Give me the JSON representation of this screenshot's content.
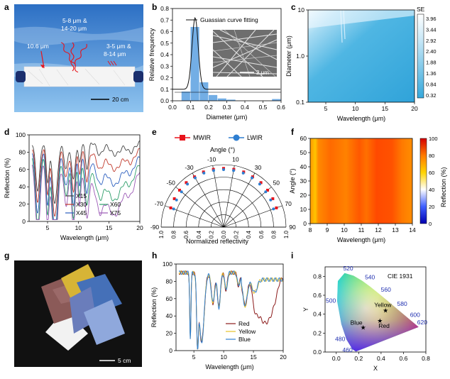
{
  "panels": {
    "a": "a",
    "b": "b",
    "c": "c",
    "d": "d",
    "e": "e",
    "f": "f",
    "g": "g",
    "h": "h",
    "i": "i"
  },
  "photo_a": {
    "lbl1": "10.6 μm",
    "lbl2a": "5-8 μm &",
    "lbl2b": "14-20 μm",
    "lbl3a": "3-5 μm &",
    "lbl3b": "8-14 μm",
    "scale": "20 cm"
  },
  "photo_g": {
    "scale": "5 cm"
  },
  "colors": {
    "red": "#e8141c",
    "blue": "#2f7fd1",
    "bar": "#5aa0e0",
    "panel_bg": "#ffffff"
  },
  "chart_data": [
    {
      "id": "b",
      "type": "bar",
      "xlabel": "Diameter (μm)",
      "ylabel": "Relative frequency",
      "xlim": [
        0.0,
        0.6
      ],
      "ylim": [
        0.0,
        0.8
      ],
      "xticks": [
        "0.0",
        "0.1",
        "0.2",
        "0.3",
        "0.4",
        "0.5",
        "0.6"
      ],
      "yticks": [
        "0.0",
        "0.1",
        "0.2",
        "0.3",
        "0.4",
        "0.5",
        "0.6",
        "0.7",
        "0.8"
      ],
      "bins": [
        0.075,
        0.125,
        0.175,
        0.225,
        0.275,
        0.325,
        0.575
      ],
      "values": [
        0.08,
        0.64,
        0.16,
        0.05,
        0.02,
        0.01,
        0.015
      ],
      "legend": "Guassian curve fitting",
      "inset_scale": "2 μm",
      "inset_label": "SEM"
    },
    {
      "id": "c",
      "type": "heatmap",
      "xlabel": "Wavelength (μm)",
      "ylabel": "Diameter (μm)",
      "xlim": [
        2,
        20
      ],
      "ylim": [
        0.1,
        10
      ],
      "xticks": [
        "5",
        "10",
        "15",
        "20"
      ],
      "yticks": [
        "10",
        "1.0",
        "0.1"
      ],
      "colorbar_title": "SE",
      "colorbar_ticks": [
        "3.96",
        "3.44",
        "2.92",
        "2.40",
        "1.88",
        "1.36",
        "0.84",
        "0.32"
      ]
    },
    {
      "id": "d",
      "type": "line",
      "xlabel": "Wavelength (μm)",
      "ylabel": "Reflection (%)",
      "xlim": [
        2,
        20
      ],
      "ylim": [
        0,
        100
      ],
      "xticks": [
        "5",
        "10",
        "15",
        "20"
      ],
      "yticks": [
        "0",
        "20",
        "40",
        "60",
        "80",
        "100"
      ],
      "series": [
        {
          "name": "X15",
          "color": "#444444",
          "base": 92
        },
        {
          "name": "X30",
          "color": "#c0392b",
          "base": 86
        },
        {
          "name": "X45",
          "color": "#2c5fbf",
          "base": 80
        },
        {
          "name": "X60",
          "color": "#2e9e6a",
          "base": 74
        },
        {
          "name": "X75",
          "color": "#9b59b6",
          "base": 68
        }
      ]
    },
    {
      "id": "e",
      "type": "polar",
      "title": "Angle (°)",
      "xlabel": "Normalized reflectivity",
      "angle_ticks": [
        "-10",
        "10",
        "-30",
        "30",
        "-50",
        "50",
        "-70",
        "70",
        "-90",
        "90"
      ],
      "r_ticks": [
        "1.0",
        "0.8",
        "0.6",
        "0.4",
        "0.2",
        "0.0",
        "0.2",
        "0.4",
        "0.6",
        "0.8",
        "1.0"
      ],
      "legend": [
        {
          "name": "MWIR",
          "color": "#e8141c"
        },
        {
          "name": "LWIR",
          "color": "#2f7fd1"
        }
      ],
      "angles": [
        -70,
        -60,
        -50,
        -40,
        -30,
        -20,
        -10,
        0,
        10,
        20,
        30,
        40,
        50,
        60,
        70
      ],
      "mwir": [
        0.9,
        0.91,
        0.92,
        0.93,
        0.93,
        0.94,
        0.94,
        0.94,
        0.94,
        0.94,
        0.93,
        0.93,
        0.92,
        0.91,
        0.9
      ],
      "lwir": [
        0.85,
        0.87,
        0.88,
        0.9,
        0.91,
        0.92,
        0.92,
        0.92,
        0.92,
        0.92,
        0.91,
        0.9,
        0.88,
        0.87,
        0.85
      ]
    },
    {
      "id": "f",
      "type": "heatmap",
      "xlabel": "Wavelength (μm)",
      "ylabel": "Angle (°)",
      "xlim": [
        8,
        14
      ],
      "ylim": [
        0,
        60
      ],
      "xticks": [
        "8",
        "9",
        "10",
        "11",
        "12",
        "13",
        "14"
      ],
      "yticks": [
        "0",
        "10",
        "20",
        "30",
        "40",
        "50",
        "60"
      ],
      "colorbar_title": "Reflection (%)",
      "colorbar_ticks": [
        "100",
        "80",
        "60",
        "40",
        "20",
        "0"
      ]
    },
    {
      "id": "h",
      "type": "line",
      "xlabel": "Wavelength (μm)",
      "ylabel": "Reflection (%)",
      "xlim": [
        2,
        20
      ],
      "ylim": [
        0,
        100
      ],
      "xticks": [
        "5",
        "10",
        "15",
        "20"
      ],
      "yticks": [
        "0",
        "20",
        "40",
        "60",
        "80",
        "100"
      ],
      "series": [
        {
          "name": "Red",
          "color": "#8b1a1a"
        },
        {
          "name": "Yellow",
          "color": "#e6c229"
        },
        {
          "name": "Blue",
          "color": "#2f7fd1"
        }
      ]
    },
    {
      "id": "i",
      "type": "scatter",
      "title": "CIE 1931",
      "xlabel": "X",
      "ylabel": "Y",
      "xlim": [
        -0.1,
        0.8
      ],
      "ylim": [
        0,
        0.9
      ],
      "xticks": [
        "0.0",
        "0.2",
        "0.4",
        "0.6",
        "0.8"
      ],
      "yticks": [
        "0.0",
        "0.2",
        "0.4",
        "0.6",
        "0.8"
      ],
      "locus": [
        {
          "nm": "460",
          "x": 0.144,
          "y": 0.03
        },
        {
          "nm": "480",
          "x": 0.091,
          "y": 0.133
        },
        {
          "nm": "500",
          "x": 0.008,
          "y": 0.538
        },
        {
          "nm": "520",
          "x": 0.074,
          "y": 0.834
        },
        {
          "nm": "540",
          "x": 0.23,
          "y": 0.754
        },
        {
          "nm": "560",
          "x": 0.373,
          "y": 0.624
        },
        {
          "nm": "580",
          "x": 0.512,
          "y": 0.487
        },
        {
          "nm": "600",
          "x": 0.627,
          "y": 0.372
        },
        {
          "nm": "620",
          "x": 0.691,
          "y": 0.308
        }
      ],
      "points": [
        {
          "name": "Yellow",
          "x": 0.44,
          "y": 0.44
        },
        {
          "name": "Blue",
          "x": 0.24,
          "y": 0.26
        },
        {
          "name": "Red",
          "x": 0.39,
          "y": 0.33
        }
      ]
    }
  ]
}
